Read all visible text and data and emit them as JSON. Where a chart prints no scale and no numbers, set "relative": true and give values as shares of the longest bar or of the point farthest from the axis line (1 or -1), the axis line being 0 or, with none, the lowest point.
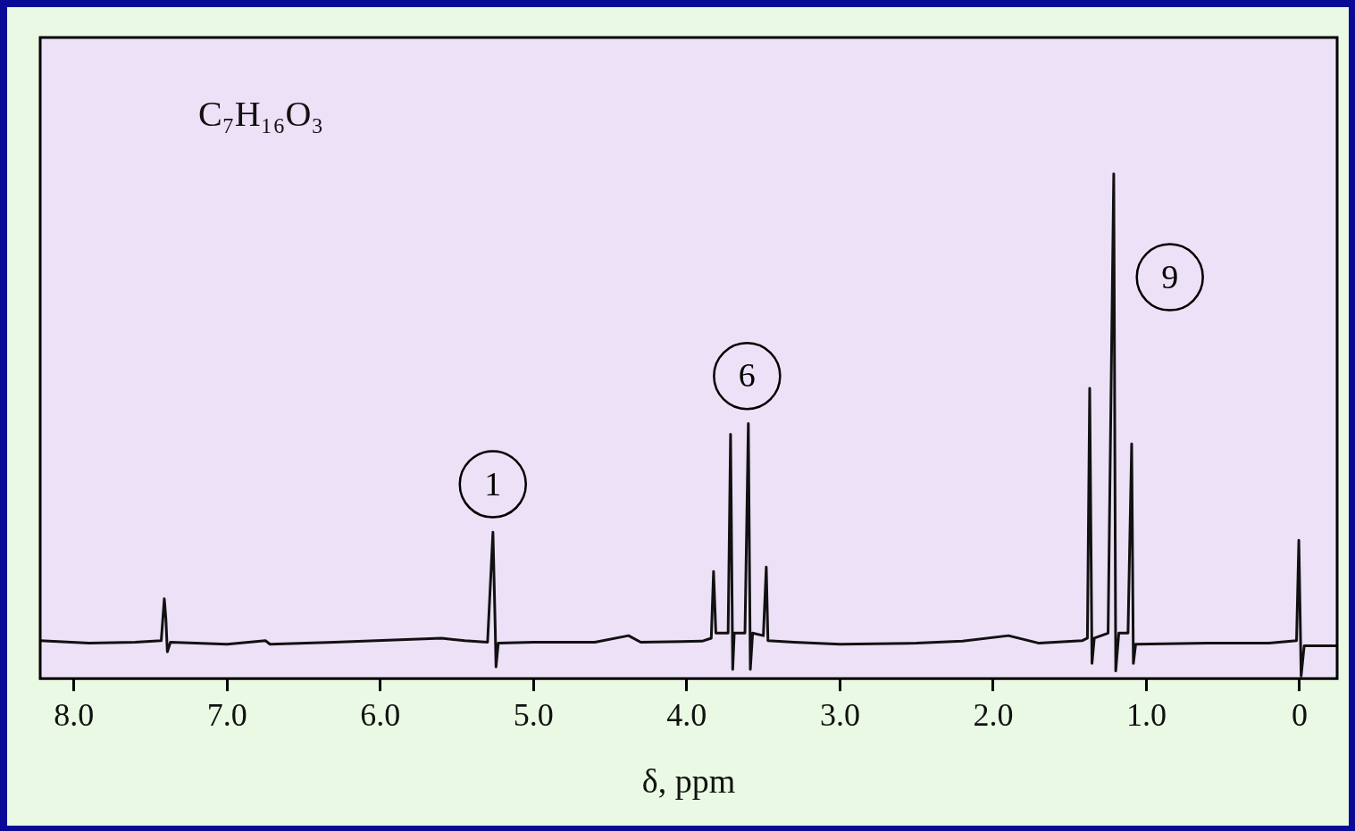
{
  "chart_data": {
    "type": "line",
    "title": "C₇H₁₆O₃",
    "xlabel": "δ, ppm",
    "relative": true,
    "xlim": [
      8.22,
      -0.245
    ],
    "xticks": [
      {
        "value": 8,
        "label": "8.0"
      },
      {
        "value": 7,
        "label": "7.0"
      },
      {
        "value": 6,
        "label": "6.0"
      },
      {
        "value": 5,
        "label": "5.0"
      },
      {
        "value": 4,
        "label": "4.0"
      },
      {
        "value": 3,
        "label": "3.0"
      },
      {
        "value": 2,
        "label": "2.0"
      },
      {
        "value": 1,
        "label": "1.0"
      },
      0
    ],
    "marker": "none",
    "line_style": "solid",
    "annotations": [
      "1",
      "6",
      "9"
    ],
    "series": [
      {
        "color": "#111111",
        "x": [
          8.22,
          7.9,
          7.6,
          7.43,
          7.41,
          7.4,
          7.39,
          7.37,
          7.0,
          6.75,
          6.72,
          6.3,
          5.6,
          5.45,
          5.3,
          5.265,
          5.25,
          5.245,
          5.23,
          5.0,
          4.6,
          4.38,
          4.3,
          3.9,
          3.84,
          3.825,
          3.81,
          3.73,
          3.714,
          3.7,
          3.69,
          3.62,
          3.598,
          3.585,
          3.57,
          3.5,
          3.481,
          3.47,
          3.3,
          3.0,
          2.5,
          2.2,
          1.9,
          1.7,
          1.42,
          1.385,
          1.37,
          1.355,
          1.34,
          1.25,
          1.213,
          1.2,
          1.18,
          1.12,
          1.096,
          1.085,
          1.07,
          0.6,
          0.2,
          0.02,
          0.005,
          -0.005,
          -0.01,
          -0.03,
          -0.245
        ],
        "values": [
          0.075,
          0.07,
          0.072,
          0.075,
          0.158,
          0.12,
          0.053,
          0.072,
          0.068,
          0.075,
          0.068,
          0.072,
          0.08,
          0.075,
          0.072,
          0.29,
          0.1,
          0.023,
          0.07,
          0.072,
          0.072,
          0.085,
          0.072,
          0.074,
          0.08,
          0.212,
          0.09,
          0.09,
          0.484,
          0.018,
          0.09,
          0.09,
          0.505,
          0.018,
          0.09,
          0.085,
          0.221,
          0.075,
          0.072,
          0.068,
          0.07,
          0.074,
          0.085,
          0.07,
          0.075,
          0.08,
          0.575,
          0.03,
          0.08,
          0.09,
          1.0,
          0.015,
          0.09,
          0.09,
          0.465,
          0.03,
          0.068,
          0.07,
          0.07,
          0.075,
          0.274,
          0.1,
          0.005,
          0.065,
          0.065
        ]
      }
    ]
  }
}
